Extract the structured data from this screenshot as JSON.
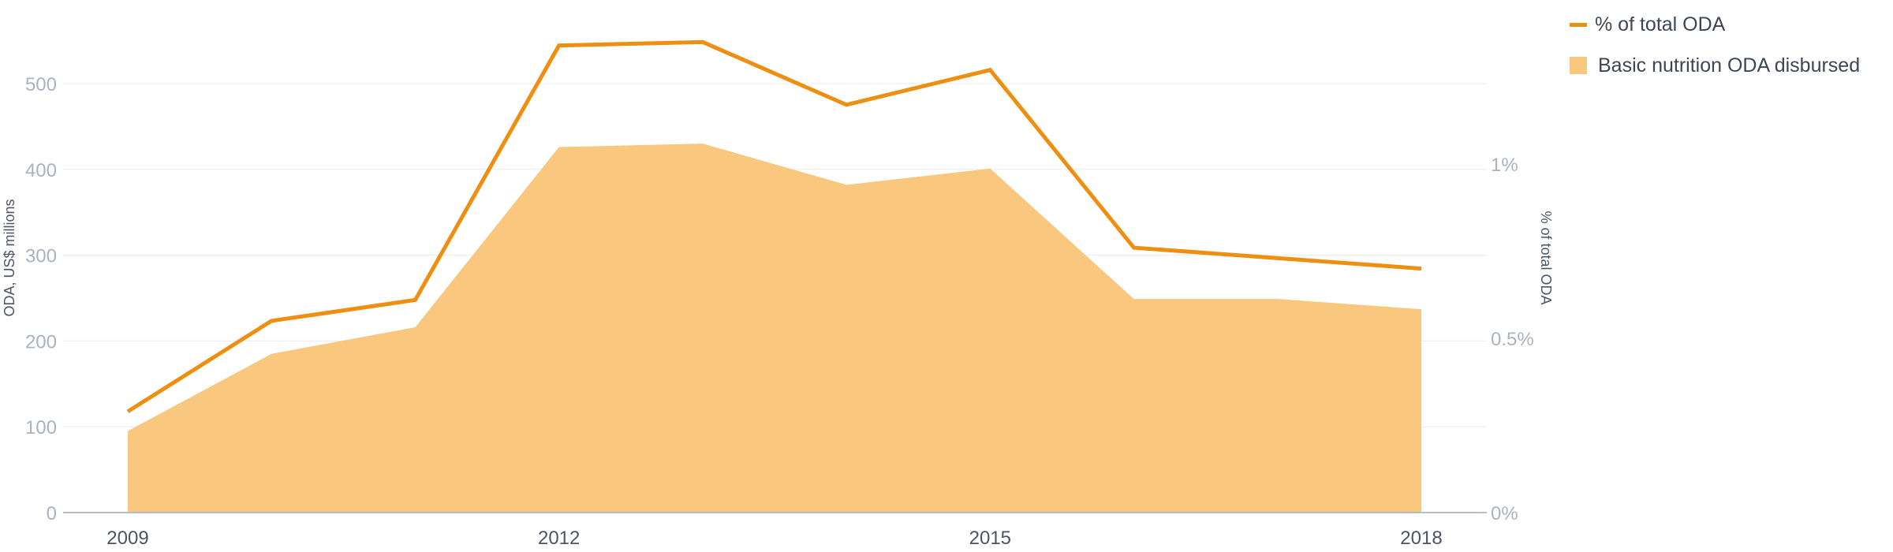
{
  "chart_data": {
    "type": "area",
    "x": [
      2009,
      2010,
      2011,
      2012,
      2013,
      2014,
      2015,
      2016,
      2017,
      2018
    ],
    "x_tick_labels": [
      "2009",
      "2012",
      "2015",
      "2018"
    ],
    "series": [
      {
        "name": "Basic nutrition ODA disbursed",
        "type": "area",
        "axis": "left",
        "values": [
          95,
          185,
          216,
          426,
          430,
          382,
          401,
          249,
          249,
          237
        ],
        "color": "#f9c77d"
      },
      {
        "name": "% of total ODA",
        "type": "line",
        "axis": "right",
        "values": [
          0.29,
          0.55,
          0.61,
          1.34,
          1.35,
          1.17,
          1.27,
          0.76,
          0.73,
          0.7
        ],
        "color": "#ef8f12"
      }
    ],
    "ylabel": "ODA, US$ millions",
    "ylim": [
      0,
      500
    ],
    "y_ticks": [
      0,
      100,
      200,
      300,
      400,
      500
    ],
    "y2label": "% of total ODA",
    "y2lim": [
      0,
      1
    ],
    "y2_ticks": [
      {
        "value": 0,
        "label": "0%"
      },
      {
        "value": 0.5,
        "label": "0.5%"
      },
      {
        "value": 1,
        "label": "1%"
      }
    ],
    "grid": true,
    "legend_position": "top-right"
  }
}
